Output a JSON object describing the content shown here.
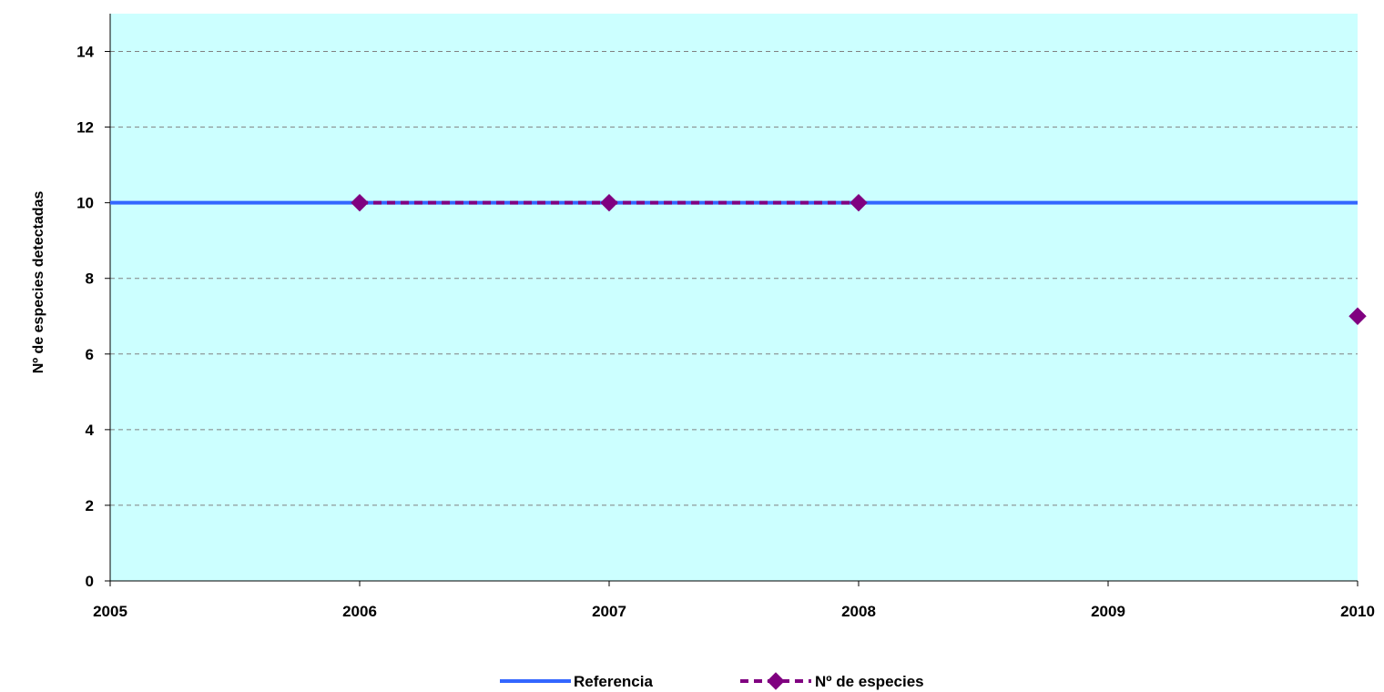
{
  "chart_data": {
    "type": "line",
    "title": "",
    "xlabel": "",
    "ylabel": "Nº de especies detectadas",
    "x": [
      2005,
      2006,
      2007,
      2008,
      2009,
      2010
    ],
    "xlim": [
      2005,
      2010
    ],
    "ylim": [
      0,
      15
    ],
    "yticks": [
      0,
      2,
      4,
      6,
      8,
      10,
      12,
      14
    ],
    "grid": true,
    "legend_position": "bottom",
    "plot_background": "#ccffff",
    "series": [
      {
        "name": "Referencia",
        "color": "#3366ff",
        "style": "solid",
        "x": [
          2005,
          2010
        ],
        "values": [
          10,
          10
        ]
      },
      {
        "name": "Nº de especies",
        "color": "#800080",
        "style": "dashed",
        "marker": "diamond",
        "x": [
          2006,
          2007,
          2008,
          2010
        ],
        "values": [
          10,
          10,
          10,
          7
        ],
        "connected_segments": [
          [
            2006,
            2008
          ]
        ]
      }
    ]
  }
}
